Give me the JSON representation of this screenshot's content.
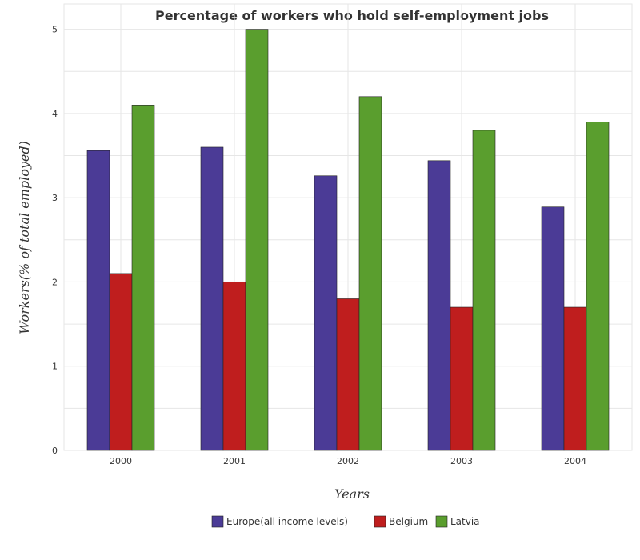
{
  "chart_data": {
    "type": "bar",
    "title": "Percentage of workers who hold self-employment jobs",
    "xlabel": "Years",
    "ylabel": "Workers(% of total employed)",
    "categories": [
      "2000",
      "2001",
      "2002",
      "2003",
      "2004"
    ],
    "series": [
      {
        "name": "Europe(all income levels)",
        "color": "#4b3b96",
        "values": [
          3.56,
          3.6,
          3.26,
          3.44,
          2.89
        ]
      },
      {
        "name": "Belgium",
        "color": "#bf1e1e",
        "values": [
          2.1,
          2.0,
          1.8,
          1.7,
          1.7
        ]
      },
      {
        "name": "Latvia",
        "color": "#5a9e2e",
        "values": [
          4.1,
          5.0,
          4.2,
          3.8,
          3.9
        ]
      }
    ],
    "ylim": [
      0,
      5.3
    ],
    "yticks": [
      "0",
      "1",
      "2",
      "3",
      "4",
      "5"
    ],
    "grid": true,
    "legend_position": "bottom-center"
  }
}
